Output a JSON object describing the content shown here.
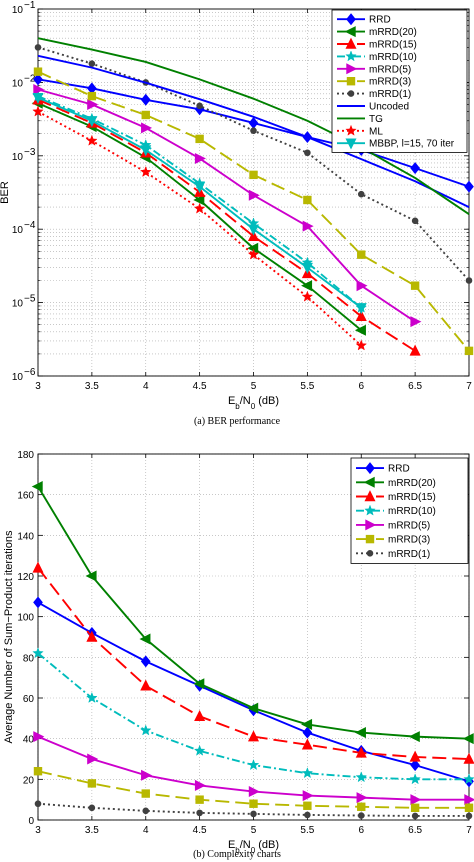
{
  "figures": [
    {
      "caption": "(a)  BER performance",
      "chart_data": {
        "type": "line",
        "y_scale": "log",
        "xlabel": "E_b/N_0 (dB)",
        "ylabel": "BER",
        "xlim": [
          3,
          7
        ],
        "ylim": [
          1e-06,
          0.1
        ],
        "x_ticks": [
          3,
          3.5,
          4,
          4.5,
          5,
          5.5,
          6,
          6.5,
          7
        ],
        "y_ticks": [
          1e-06,
          1e-05,
          0.0001,
          0.001,
          0.01,
          0.1
        ],
        "grid": true,
        "legend_position": "top-right",
        "series": [
          {
            "name": "RRD",
            "color": "#0000ff",
            "dash": "",
            "marker": "diamond",
            "x": [
              3,
              3.5,
              4,
              4.5,
              5,
              5.5,
              6,
              6.5,
              7
            ],
            "y": [
              0.011,
              0.0083,
              0.0058,
              0.0043,
              0.0028,
              0.0018,
              0.0012,
              0.00068,
              0.00038
            ]
          },
          {
            "name": "mRRD(20)",
            "color": "#008000",
            "dash": "",
            "marker": "tri-left",
            "x": [
              3,
              3.5,
              4,
              4.5,
              5,
              5.5,
              6
            ],
            "y": [
              0.0052,
              0.0025,
              0.00095,
              0.00025,
              5.5e-05,
              1.7e-05,
              4.2e-06
            ]
          },
          {
            "name": "mRRD(15)",
            "color": "#ff0000",
            "dash": "14,6",
            "marker": "tri-up",
            "x": [
              3,
              3.5,
              4,
              4.5,
              5,
              5.5,
              6,
              6.5
            ],
            "y": [
              0.0058,
              0.0028,
              0.0011,
              0.00032,
              8e-05,
              2.5e-05,
              6.5e-06,
              2.2e-06
            ]
          },
          {
            "name": "mRRD(10)",
            "color": "#00bcbc",
            "dash": "8,3,2,3",
            "marker": "star",
            "x": [
              3,
              3.5,
              4,
              4.5,
              5,
              5.5,
              6
            ],
            "y": [
              0.0065,
              0.0032,
              0.0014,
              0.00042,
              0.00012,
              3.5e-05,
              8.5e-06
            ]
          },
          {
            "name": "mRRD(5)",
            "color": "#cc00cc",
            "dash": "",
            "marker": "tri-right",
            "x": [
              3,
              3.5,
              4,
              4.5,
              5,
              5.5,
              6,
              6.5
            ],
            "y": [
              0.008,
              0.005,
              0.0024,
              0.00092,
              0.00029,
              0.00011,
              1.7e-05,
              5.5e-06
            ]
          },
          {
            "name": "mRRD(3)",
            "color": "#b8b800",
            "dash": "14,6",
            "marker": "square",
            "x": [
              3,
              3.5,
              4,
              4.5,
              5,
              5.5,
              6,
              6.5,
              7
            ],
            "y": [
              0.014,
              0.0065,
              0.0036,
              0.0017,
              0.00055,
              0.00025,
              4.5e-05,
              1.7e-05,
              2.2e-06
            ]
          },
          {
            "name": "mRRD(1)",
            "color": "#404040",
            "dash": "2,3",
            "marker": "circle",
            "x": [
              3,
              3.5,
              4,
              4.5,
              5,
              5.5,
              6,
              6.5,
              7
            ],
            "y": [
              0.03,
              0.018,
              0.01,
              0.0048,
              0.0022,
              0.0011,
              0.0003,
              0.00013,
              2e-05
            ]
          },
          {
            "name": "Uncoded",
            "color": "#0000ff",
            "dash": "",
            "marker": "none",
            "x": [
              3,
              3.5,
              4,
              4.5,
              5,
              5.5,
              6,
              6.5,
              7
            ],
            "y": [
              0.023,
              0.0159,
              0.0099,
              0.0059,
              0.0034,
              0.0018,
              0.0009,
              0.00045,
              0.0002
            ]
          },
          {
            "name": "TG",
            "color": "#008000",
            "dash": "",
            "marker": "none",
            "x": [
              3,
              3.5,
              4,
              4.5,
              5,
              5.5,
              6,
              6.5,
              7
            ],
            "y": [
              0.04,
              0.028,
              0.019,
              0.011,
              0.006,
              0.003,
              0.0013,
              0.0005,
              0.00016
            ]
          },
          {
            "name": "ML",
            "color": "#ff0000",
            "dash": "2,3",
            "marker": "star",
            "x": [
              3,
              3.5,
              4,
              4.5,
              5,
              5.5,
              6
            ],
            "y": [
              0.004,
              0.0016,
              0.0006,
              0.00019,
              4.5e-05,
              1.2e-05,
              2.6e-06
            ]
          },
          {
            "name": "MBBP, l=15, 70 iter",
            "color": "#00bcbc",
            "dash": "",
            "marker": "tri-down",
            "x": [
              3,
              3.5,
              4,
              4.5,
              5,
              5.5,
              6
            ],
            "y": [
              0.0062,
              0.003,
              0.0012,
              0.00038,
              0.0001,
              3e-05,
              8.5e-06
            ]
          }
        ]
      }
    },
    {
      "caption": "(b)  Complexity charts",
      "chart_data": {
        "type": "line",
        "xlabel": "E_b/N_0 (dB)",
        "ylabel": "Average Number of Sum−Product iterations",
        "xlim": [
          3,
          7
        ],
        "ylim": [
          0,
          180
        ],
        "x_ticks": [
          3,
          3.5,
          4,
          4.5,
          5,
          5.5,
          6,
          6.5,
          7
        ],
        "y_ticks": [
          0,
          20,
          40,
          60,
          80,
          100,
          120,
          140,
          160,
          180
        ],
        "grid": true,
        "legend_position": "top-right",
        "series": [
          {
            "name": "RRD",
            "color": "#0000ff",
            "dash": "",
            "marker": "diamond",
            "x": [
              3,
              3.5,
              4,
              4.5,
              5,
              5.5,
              6,
              6.5,
              7
            ],
            "y": [
              107,
              92,
              78,
              66,
              54,
              43,
              34,
              27,
              19
            ]
          },
          {
            "name": "mRRD(20)",
            "color": "#008000",
            "dash": "",
            "marker": "tri-left",
            "x": [
              3,
              3.5,
              4,
              4.5,
              5,
              5.5,
              6,
              6.5,
              7
            ],
            "y": [
              164,
              120,
              89,
              67,
              55,
              47,
              43,
              41,
              40
            ]
          },
          {
            "name": "mRRD(15)",
            "color": "#ff0000",
            "dash": "14,6",
            "marker": "tri-up",
            "x": [
              3,
              3.5,
              4,
              4.5,
              5,
              5.5,
              6,
              6.5,
              7
            ],
            "y": [
              124,
              90,
              66,
              51,
              41,
              37,
              33,
              31,
              30
            ]
          },
          {
            "name": "mRRD(10)",
            "color": "#00bcbc",
            "dash": "8,3,2,3",
            "marker": "star",
            "x": [
              3,
              3.5,
              4,
              4.5,
              5,
              5.5,
              6,
              6.5,
              7
            ],
            "y": [
              82,
              60,
              44,
              34,
              27,
              23,
              21,
              20,
              20
            ]
          },
          {
            "name": "mRRD(5)",
            "color": "#cc00cc",
            "dash": "",
            "marker": "tri-right",
            "x": [
              3,
              3.5,
              4,
              4.5,
              5,
              5.5,
              6,
              6.5,
              7
            ],
            "y": [
              41,
              30,
              22,
              17,
              14,
              12,
              11,
              10,
              10
            ]
          },
          {
            "name": "mRRD(3)",
            "color": "#b8b800",
            "dash": "14,6",
            "marker": "square",
            "x": [
              3,
              3.5,
              4,
              4.5,
              5,
              5.5,
              6,
              6.5,
              7
            ],
            "y": [
              24,
              18,
              13,
              10,
              8,
              7,
              6.5,
              6,
              6
            ]
          },
          {
            "name": "mRRD(1)",
            "color": "#404040",
            "dash": "2,3",
            "marker": "circle",
            "x": [
              3,
              3.5,
              4,
              4.5,
              5,
              5.5,
              6,
              6.5,
              7
            ],
            "y": [
              8,
              6,
              4.5,
              3.5,
              3,
              2.5,
              2.2,
              2,
              2
            ]
          }
        ]
      }
    }
  ]
}
